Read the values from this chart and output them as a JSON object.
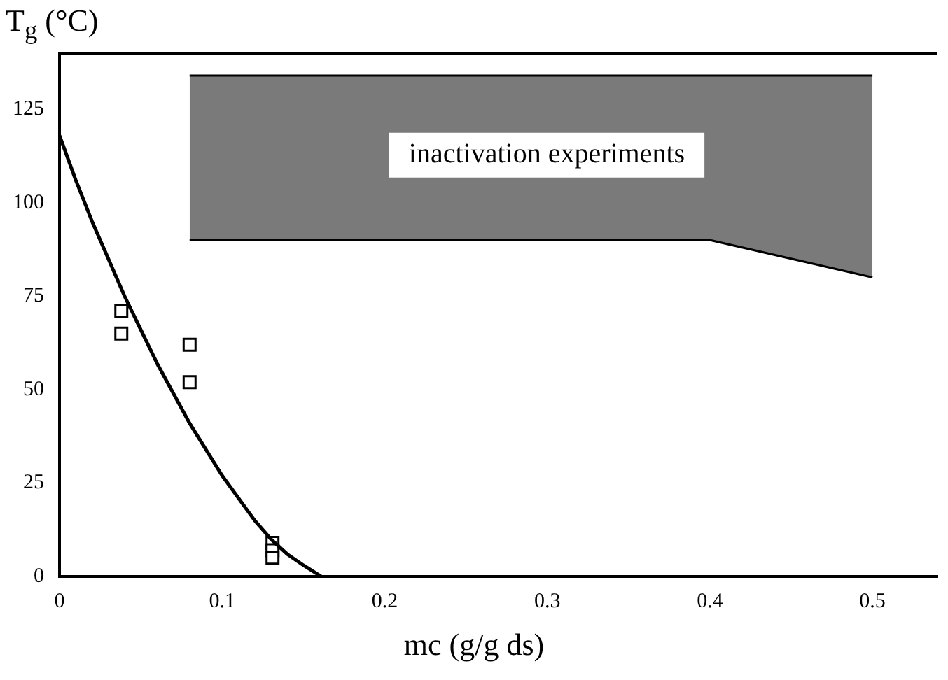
{
  "chart_data": {
    "type": "line",
    "xlabel": "mc (g/g ds)",
    "ylabel": "T$_{g}$ (°C)",
    "xlim": [
      0,
      0.54
    ],
    "xticks": [
      0,
      0.1,
      0.2,
      0.3,
      0.4,
      0.5
    ],
    "ylim": [
      0,
      140
    ],
    "yticks": [
      0,
      25,
      50,
      75,
      100,
      125
    ],
    "grid": false,
    "legend": false,
    "series": [
      {
        "color": "#000000",
        "marker": "none",
        "line_style": "solid",
        "x": [
          0,
          0.01,
          0.02,
          0.03,
          0.04,
          0.05,
          0.06,
          0.07,
          0.08,
          0.09,
          0.1,
          0.11,
          0.12,
          0.13,
          0.14,
          0.15,
          0.161
        ],
        "values": [
          118,
          106,
          95,
          85,
          75,
          66,
          57,
          49,
          41,
          34,
          27,
          21,
          15,
          10,
          6,
          3,
          0
        ]
      },
      {
        "type": "scatter",
        "color": "#000000",
        "marker": "square",
        "x": [
          0.038,
          0.038,
          0.08,
          0.08,
          0.131,
          0.131,
          0.131
        ],
        "values": [
          71,
          65,
          62,
          52,
          9,
          7,
          5
        ]
      },
      {
        "type": "line",
        "color": "#000000",
        "marker": "none",
        "x": [
          0.08,
          0.4,
          0.5
        ],
        "values": [
          90,
          90,
          80
        ]
      },
      {
        "type": "area",
        "color": "#7a7a7a",
        "x": [
          0.08,
          0.4,
          0.5
        ],
        "values": [
          134,
          134,
          134
        ]
      }
    ],
    "annotations": [
      "inactivation experiments"
    ]
  }
}
